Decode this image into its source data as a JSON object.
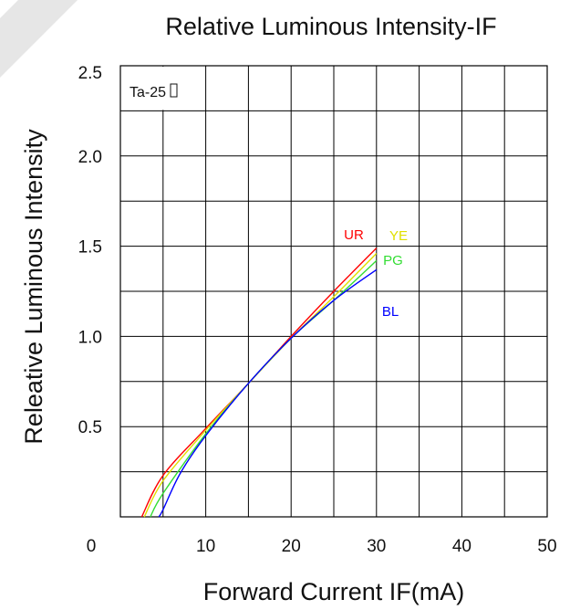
{
  "chart_data": {
    "type": "line",
    "title": "Relative Luminous Intensity-IF",
    "xlabel": "Forward Current IF(mA)",
    "ylabel": "Releative Luminous Intensity",
    "xlim": [
      0,
      50
    ],
    "ylim": [
      0,
      2.5
    ],
    "x_ticks": [
      0,
      10,
      20,
      30,
      40,
      50
    ],
    "x_tick_labels": [
      "0",
      "10",
      "20",
      "30",
      "40",
      "50"
    ],
    "y_ticks": [
      0.5,
      1.0,
      1.5,
      2.0,
      2.5
    ],
    "y_tick_labels": [
      "0.5",
      "1.0",
      "1.5",
      "2.0",
      "2.5"
    ],
    "grid": true,
    "annotation": "Ta-25",
    "series": [
      {
        "name": "UR",
        "color": "#ff0000",
        "x": [
          2.5,
          5,
          10,
          15,
          20,
          25,
          30
        ],
        "y": [
          0.0,
          0.23,
          0.49,
          0.74,
          1.0,
          1.25,
          1.49
        ]
      },
      {
        "name": "YE",
        "color": "#e0e000",
        "x": [
          2.8,
          5,
          10,
          15,
          20,
          25,
          30
        ],
        "y": [
          0.0,
          0.2,
          0.48,
          0.74,
          0.99,
          1.22,
          1.46
        ]
      },
      {
        "name": "PG",
        "color": "#33dd33",
        "x": [
          3.5,
          5,
          10,
          15,
          20,
          25,
          30
        ],
        "y": [
          0.0,
          0.13,
          0.46,
          0.74,
          0.99,
          1.2,
          1.42
        ]
      },
      {
        "name": "BL",
        "color": "#0000ff",
        "x": [
          4.5,
          5,
          7,
          10,
          15,
          20,
          25,
          30
        ],
        "y": [
          0.0,
          0.04,
          0.24,
          0.45,
          0.74,
          0.99,
          1.2,
          1.37
        ]
      }
    ]
  }
}
